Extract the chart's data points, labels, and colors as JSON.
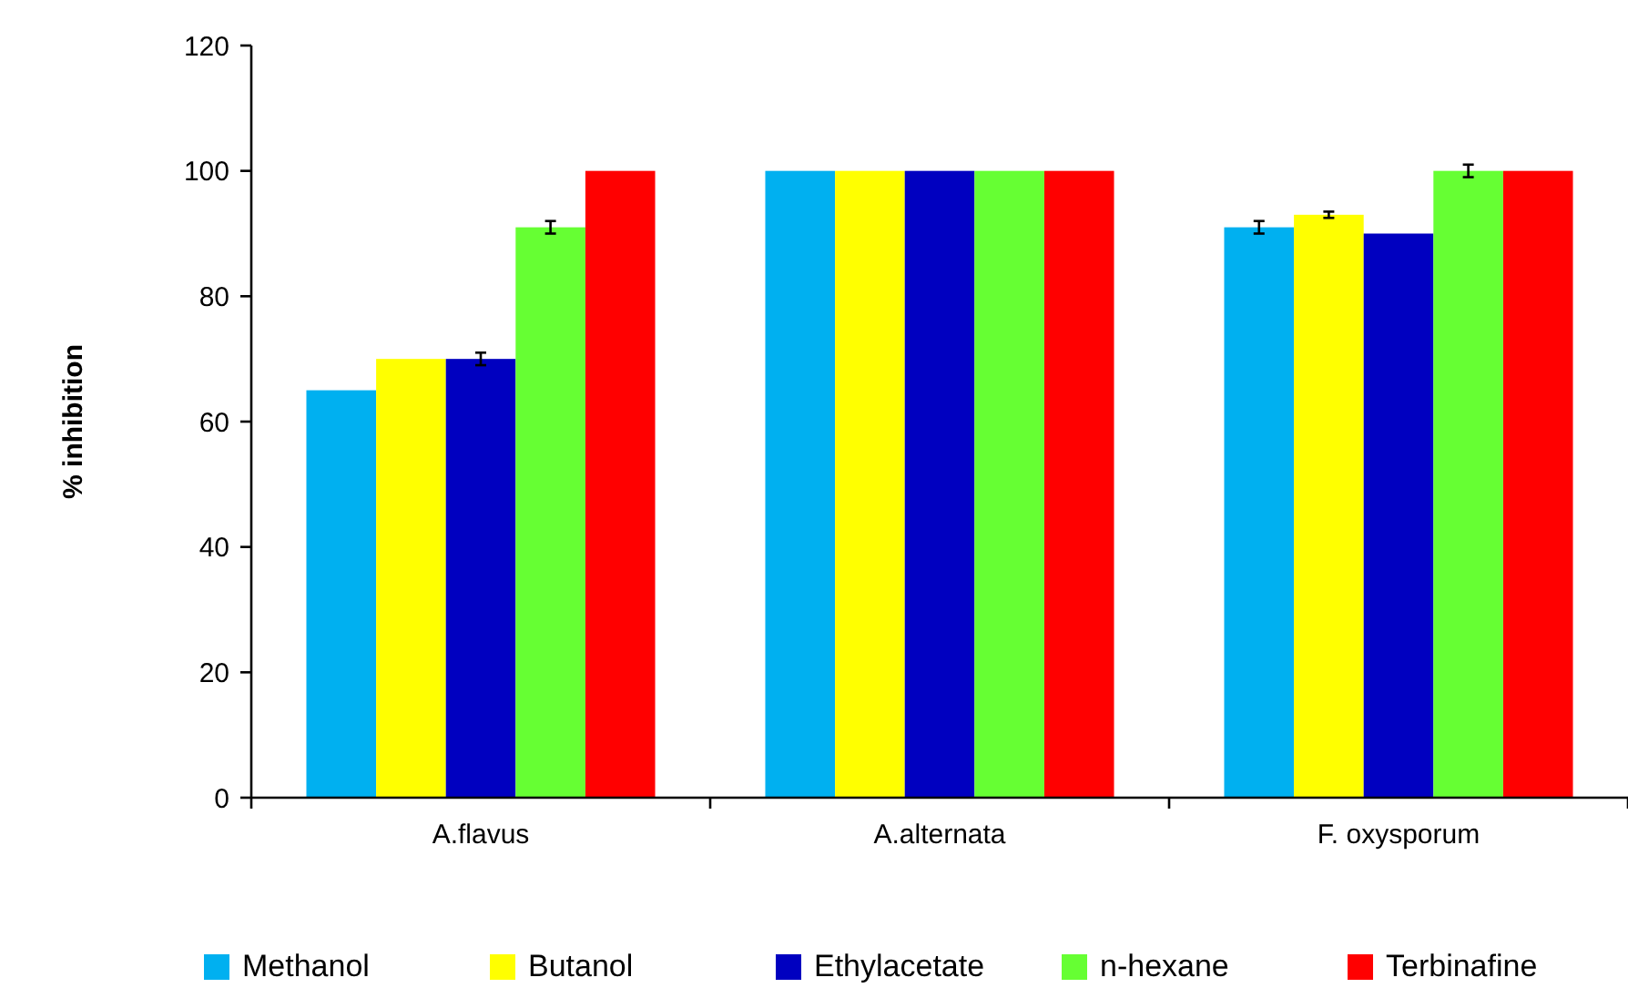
{
  "chart_data": {
    "type": "bar",
    "ylabel": "% inhibition",
    "categories": [
      "A.flavus",
      "A.alternata",
      "F. oxysporum"
    ],
    "series": [
      {
        "name": "Methanol",
        "color": "#00b0f0",
        "values": [
          65,
          100,
          91
        ],
        "errors": [
          null,
          null,
          1
        ]
      },
      {
        "name": "Butanol",
        "color": "#ffff00",
        "values": [
          70,
          100,
          93
        ],
        "errors": [
          null,
          null,
          0.5
        ]
      },
      {
        "name": "Ethylacetate",
        "color": "#0000c0",
        "values": [
          70,
          100,
          90
        ],
        "errors": [
          1,
          null,
          null
        ]
      },
      {
        "name": "n-hexane",
        "color": "#66ff33",
        "values": [
          91,
          100,
          100
        ],
        "errors": [
          1,
          null,
          1
        ]
      },
      {
        "name": "Terbinafine",
        "color": "#ff0000",
        "values": [
          100,
          100,
          100
        ],
        "errors": [
          null,
          null,
          null
        ]
      }
    ],
    "ylim": [
      0,
      120
    ],
    "yticks": [
      0,
      20,
      40,
      60,
      80,
      100,
      120
    ],
    "legend": "bottom"
  }
}
